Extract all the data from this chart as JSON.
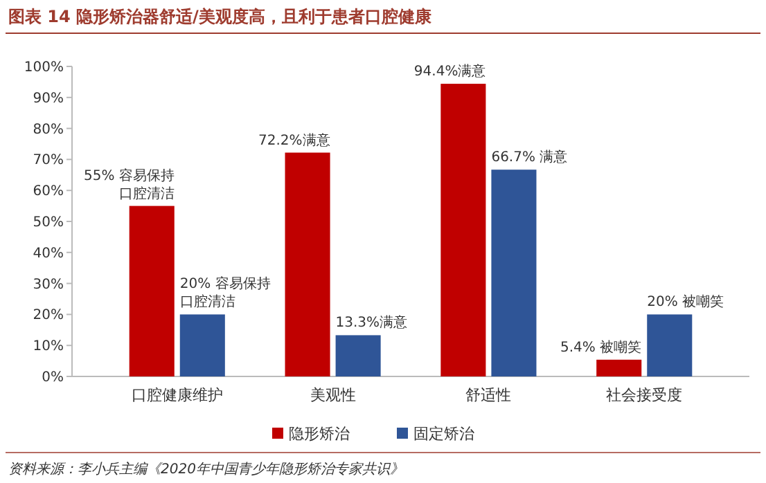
{
  "chart_data": {
    "type": "bar",
    "title": "图表 14  隐形矫治器舒适/美观度高，且利于患者口腔健康",
    "categories": [
      "口腔健康维护",
      "美观性",
      "舒适性",
      "社会接受度"
    ],
    "series": [
      {
        "name": "隐形矫治",
        "color": "#c00000",
        "values": [
          55,
          72.2,
          94.4,
          5.4
        ],
        "value_labels": [
          "55% 容易保持口腔清洁",
          "72.2%满意",
          "94.4%满意",
          "5.4% 被嘲笑"
        ]
      },
      {
        "name": "固定矫治",
        "color": "#2f5597",
        "values": [
          20,
          13.3,
          66.7,
          20
        ],
        "value_labels": [
          "20% 容易保持口腔清洁",
          "13.3%满意",
          "66.7% 满意",
          "20% 被嘲笑"
        ]
      }
    ],
    "ylim": [
      0,
      100
    ],
    "yticks": [
      {
        "value": 0,
        "label": "0%"
      },
      {
        "value": 10,
        "label": "10%"
      },
      {
        "value": 20,
        "label": "20%"
      },
      {
        "value": 30,
        "label": "30%"
      },
      {
        "value": 40,
        "label": "40%"
      },
      {
        "value": 50,
        "label": "50%"
      },
      {
        "value": 60,
        "label": "60%"
      },
      {
        "value": 70,
        "label": "70%"
      },
      {
        "value": 80,
        "label": "80%"
      },
      {
        "value": 90,
        "label": "90%"
      },
      {
        "value": 100,
        "label": "100%"
      }
    ],
    "legend": "bottom",
    "annotations": [
      "资料来源：李小兵主编《2020年中国青少年隐形矫治专家共识》"
    ]
  }
}
